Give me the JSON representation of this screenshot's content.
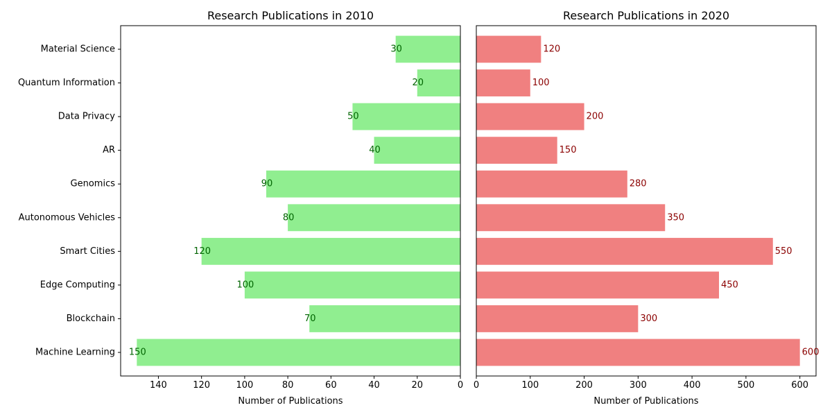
{
  "chart_data": [
    {
      "type": "bar",
      "orientation": "horizontal",
      "x_axis_inverted": true,
      "title": "Research Publications in 2010",
      "xlabel": "Number of Publications",
      "ylabel": "",
      "xlim": [
        0,
        157.5
      ],
      "xticks": [
        0,
        20,
        40,
        60,
        80,
        100,
        120,
        140
      ],
      "categories": [
        "Machine Learning",
        "Blockchain",
        "Edge Computing",
        "Smart Cities",
        "Autonomous Vehicles",
        "Genomics",
        "AR",
        "Data Privacy",
        "Quantum Information",
        "Material Science"
      ],
      "values": [
        150,
        70,
        100,
        120,
        80,
        90,
        40,
        50,
        20,
        30
      ],
      "bar_color": "#90ee90",
      "label_color": "#006400",
      "show_data_labels": true,
      "legend": "none",
      "grid": false
    },
    {
      "type": "bar",
      "orientation": "horizontal",
      "x_axis_inverted": false,
      "title": "Research Publications in 2020",
      "xlabel": "Number of Publications",
      "ylabel": "",
      "xlim": [
        0,
        630
      ],
      "xticks": [
        0,
        100,
        200,
        300,
        400,
        500,
        600
      ],
      "categories": [
        "Machine Learning",
        "Blockchain",
        "Edge Computing",
        "Smart Cities",
        "Autonomous Vehicles",
        "Genomics",
        "AR",
        "Data Privacy",
        "Quantum Information",
        "Material Science"
      ],
      "values": [
        600,
        300,
        450,
        550,
        350,
        280,
        150,
        200,
        100,
        120
      ],
      "bar_color": "#f08080",
      "label_color": "#8b0000",
      "show_data_labels": true,
      "legend": "none",
      "grid": false
    }
  ]
}
